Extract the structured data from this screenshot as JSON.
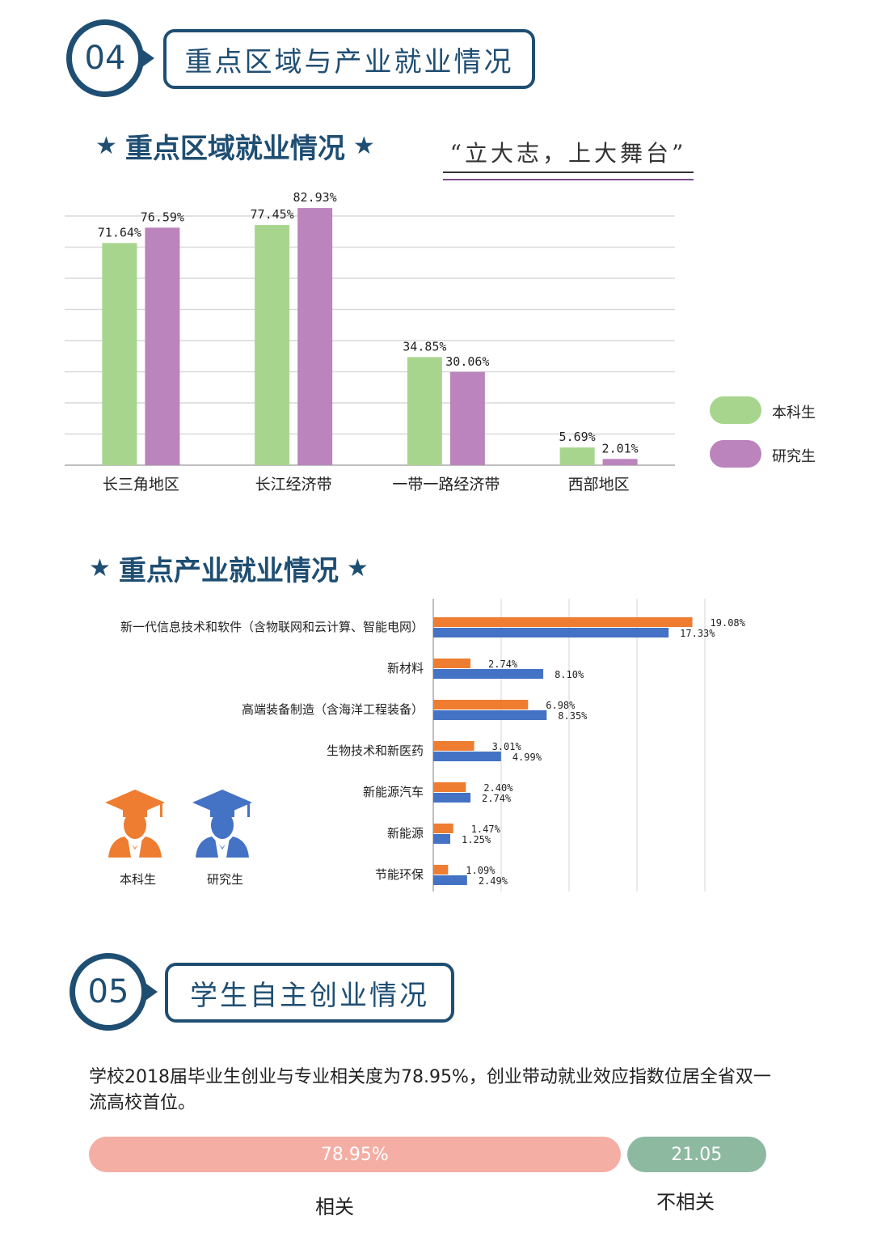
{
  "section4": {
    "number": "04",
    "title": "重点区域与产业就业情况"
  },
  "region": {
    "subtitle": "重点区域就业情况",
    "star_left": "★",
    "star_right": "★",
    "slogan": "“立大志，上大舞台”"
  },
  "industry": {
    "subtitle": "重点产业就业情况",
    "star_left": "★",
    "star_right": "★"
  },
  "section5": {
    "number": "05",
    "title": "学生自主创业情况",
    "description": "学校2018届毕业生创业与专业相关度为78.95%，创业带动就业效应指数位居全省双一流高校首位。"
  },
  "colors": {
    "dark_blue": "#1f4e73",
    "undergrad_green": "#a8d58e",
    "grad_purple": "#bb84bd",
    "undergrad_orange": "#ee7d31",
    "grad_blue": "#4472c4",
    "related_pink": "#f4aea4",
    "unrelated_green": "#8eb9a1"
  },
  "chart_data": [
    {
      "type": "bar",
      "categories": [
        "长三角地区",
        "长江经济带",
        "一带一路经济带",
        "西部地区"
      ],
      "series": [
        {
          "name": "本科生",
          "values": [
            71.64,
            77.45,
            34.85,
            5.69
          ],
          "labels": [
            "71.64%",
            "77.45%",
            "34.85%",
            "5.69%"
          ]
        },
        {
          "name": "研究生",
          "values": [
            76.59,
            82.93,
            30.06,
            2.01
          ],
          "labels": [
            "76.59%",
            "82.93%",
            "30.06%",
            "2.01%"
          ]
        }
      ],
      "ylim": [
        0,
        90
      ],
      "grid": true,
      "legend": "right"
    },
    {
      "type": "bar",
      "orientation": "horizontal",
      "categories": [
        "新一代信息技术和软件（含物联网和云计算、智能电网）",
        "新材料",
        "高端装备制造（含海洋工程装备）",
        "生物技术和新医药",
        "新能源汽车",
        "新能源",
        "节能环保"
      ],
      "series": [
        {
          "name": "本科生",
          "values": [
            19.08,
            2.74,
            6.98,
            3.01,
            2.4,
            1.47,
            1.09
          ],
          "labels": [
            "19.08%",
            "2.74%",
            "6.98%",
            "3.01%",
            "2.40%",
            "1.47%",
            "1.09%"
          ]
        },
        {
          "name": "研究生",
          "values": [
            17.33,
            8.1,
            8.35,
            4.99,
            2.74,
            1.25,
            2.49
          ],
          "labels": [
            "17.33%",
            "8.10%",
            "8.35%",
            "4.99%",
            "2.74%",
            "1.25%",
            "2.49%"
          ]
        }
      ],
      "xlim": [
        0,
        20
      ],
      "grid": true,
      "legend": "bottom-left"
    },
    {
      "type": "bar",
      "orientation": "stacked-horizontal",
      "categories": [
        "相关",
        "不相关"
      ],
      "values": [
        78.95,
        21.05
      ],
      "labels": [
        "78.95%",
        "21.05"
      ]
    }
  ]
}
